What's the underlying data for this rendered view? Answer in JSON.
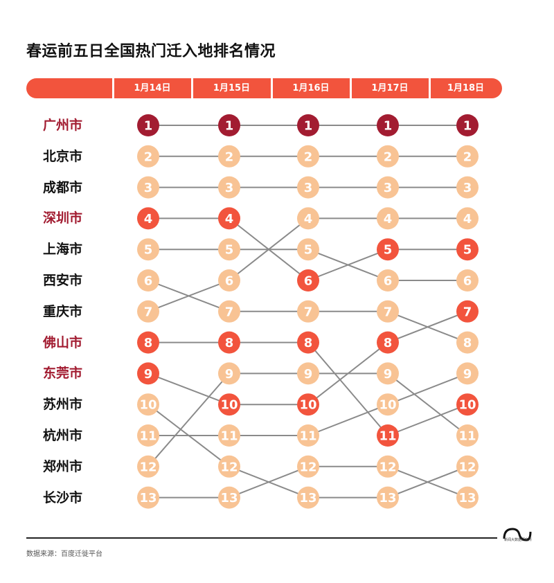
{
  "title": "春运前五日全国热门迁入地排名情况",
  "chart_data": {
    "type": "bump",
    "title": "春运前五日全国热门迁入地排名情况",
    "dates": [
      "1月14日",
      "1月15日",
      "1月16日",
      "1月17日",
      "1月18日"
    ],
    "series": [
      {
        "name": "广州市",
        "highlight": true,
        "ranks": [
          1,
          1,
          1,
          1,
          1
        ]
      },
      {
        "name": "北京市",
        "highlight": false,
        "ranks": [
          2,
          2,
          2,
          2,
          2
        ]
      },
      {
        "name": "成都市",
        "highlight": false,
        "ranks": [
          3,
          3,
          3,
          3,
          3
        ]
      },
      {
        "name": "深圳市",
        "highlight": true,
        "ranks": [
          4,
          4,
          6,
          5,
          5
        ]
      },
      {
        "name": "上海市",
        "highlight": false,
        "ranks": [
          5,
          5,
          5,
          6,
          6
        ]
      },
      {
        "name": "西安市",
        "highlight": false,
        "ranks": [
          6,
          7,
          7,
          7,
          8
        ]
      },
      {
        "name": "重庆市",
        "highlight": false,
        "ranks": [
          7,
          6,
          4,
          4,
          4
        ]
      },
      {
        "name": "佛山市",
        "highlight": true,
        "ranks": [
          8,
          8,
          8,
          11,
          10
        ]
      },
      {
        "name": "东莞市",
        "highlight": true,
        "ranks": [
          9,
          10,
          10,
          8,
          7
        ]
      },
      {
        "name": "苏州市",
        "highlight": false,
        "ranks": [
          10,
          12,
          13,
          13,
          12
        ]
      },
      {
        "name": "杭州市",
        "highlight": false,
        "ranks": [
          11,
          11,
          11,
          10,
          9
        ]
      },
      {
        "name": "郑州市",
        "highlight": false,
        "ranks": [
          12,
          9,
          9,
          9,
          11
        ]
      },
      {
        "name": "长沙市",
        "highlight": false,
        "ranks": [
          13,
          13,
          12,
          12,
          13
        ]
      }
    ],
    "colors": {
      "primary": "#a21c31",
      "accent": "#f2543d",
      "other": "#f8c394",
      "line": "#8a8a8a"
    }
  },
  "footer": {
    "source": "数据来源：百度迁徙平台",
    "brand": "新闻大数据研究所"
  }
}
